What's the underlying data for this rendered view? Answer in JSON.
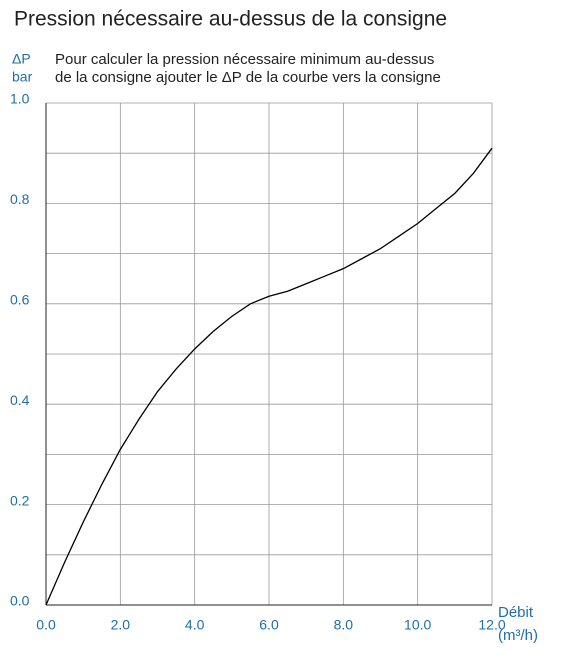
{
  "chart_data": {
    "type": "line",
    "title": "Pression nécessaire au-dessus de la consigne",
    "annotation": [
      "Pour calculer la pression nécessaire minimum au-dessus",
      "de la consigne ajouter le ΔP de la courbe vers la consigne"
    ],
    "y_label": [
      "ΔP",
      "bar"
    ],
    "x_label": [
      "Débit",
      "(m³/h)"
    ],
    "x": [
      0,
      0.5,
      1,
      1.5,
      2,
      2.5,
      3,
      3.5,
      4,
      4.5,
      5,
      5.5,
      6,
      6.5,
      7,
      7.5,
      8,
      8.5,
      9,
      9.5,
      10,
      10.5,
      11,
      11.5,
      12
    ],
    "series": [
      {
        "color": "#000000",
        "values": [
          0,
          0.085,
          0.165,
          0.24,
          0.31,
          0.37,
          0.425,
          0.47,
          0.51,
          0.545,
          0.575,
          0.6,
          0.615,
          0.625,
          0.64,
          0.655,
          0.67,
          0.69,
          0.71,
          0.735,
          0.76,
          0.79,
          0.82,
          0.86,
          0.91
        ]
      }
    ],
    "xlim": [
      0,
      12
    ],
    "ylim": [
      0,
      1
    ],
    "xticks": [
      {
        "value": 0,
        "label": "0.0"
      },
      {
        "value": 2,
        "label": "2.0"
      },
      {
        "value": 4,
        "label": "4.0"
      },
      {
        "value": 6,
        "label": "6.0"
      },
      {
        "value": 8,
        "label": "8.0"
      },
      {
        "value": 10,
        "label": "10.0"
      },
      {
        "value": 12,
        "label": "12.0"
      }
    ],
    "yticks": [
      {
        "value": 0,
        "label": "0.0"
      },
      0.2,
      0.4,
      0.6,
      0.8,
      {
        "value": 1,
        "label": "1.0"
      }
    ],
    "y_minor_grid": [
      0.1,
      0.3,
      0.5,
      0.7,
      0.9
    ],
    "grid": true,
    "grid_color": "#999999",
    "label_color": "#1f6ea6"
  }
}
